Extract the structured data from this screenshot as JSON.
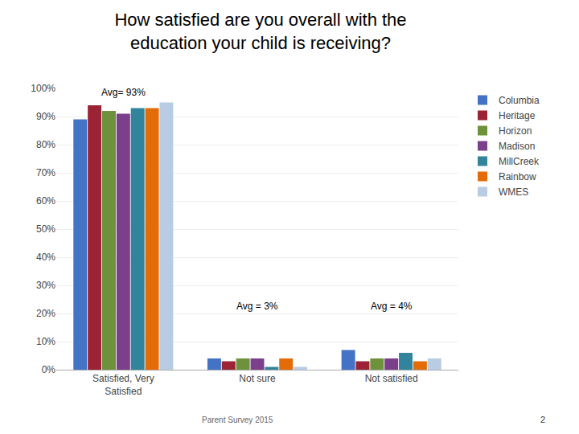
{
  "chart_data": {
    "type": "bar",
    "title": "How satisfied are you overall with the\neducation your child is receiving?",
    "categories": [
      "Satisfied, Very\nSatisfied",
      "Not sure",
      "Not satisfied"
    ],
    "series": [
      {
        "name": "Columbia",
        "color": "#4472C4",
        "values": [
          89,
          4,
          7
        ]
      },
      {
        "name": "Heritage",
        "color": "#9B2335",
        "values": [
          94,
          3,
          3
        ]
      },
      {
        "name": "Horizon",
        "color": "#6E923C",
        "values": [
          92,
          4,
          4
        ]
      },
      {
        "name": "Madison",
        "color": "#7B3F8C",
        "values": [
          91,
          4,
          4
        ]
      },
      {
        "name": "MillCreek",
        "color": "#31849B",
        "values": [
          93,
          1,
          6
        ]
      },
      {
        "name": "Rainbow",
        "color": "#E36C09",
        "values": [
          93,
          4,
          3
        ]
      },
      {
        "name": "WMES",
        "color": "#B8CCE4",
        "values": [
          95,
          1,
          4
        ]
      }
    ],
    "annotations": [
      {
        "text": "Avg= 93%",
        "x": "Satisfied, Very\nSatisfied",
        "y": 96
      },
      {
        "text": "Avg = 3%",
        "x": "Not sure",
        "y": 20
      },
      {
        "text": "Avg = 4%",
        "x": "Not satisfied",
        "y": 20
      },
      {
        "text": "Parent Survey 2015"
      },
      {
        "text": "2"
      }
    ],
    "ylim": [
      0,
      100
    ],
    "yticks": [
      {
        "value": 0,
        "label": "0%"
      },
      {
        "value": 10,
        "label": "10%"
      },
      {
        "value": 20,
        "label": "20%"
      },
      {
        "value": 30,
        "label": "30%"
      },
      {
        "value": 40,
        "label": "40%"
      },
      {
        "value": 50,
        "label": "50%"
      },
      {
        "value": 60,
        "label": "60%"
      },
      {
        "value": 70,
        "label": "70%"
      },
      {
        "value": 80,
        "label": "80%"
      },
      {
        "value": 90,
        "label": "90%"
      },
      {
        "value": 100,
        "label": "100%"
      }
    ],
    "grid": true,
    "legend": "right"
  }
}
